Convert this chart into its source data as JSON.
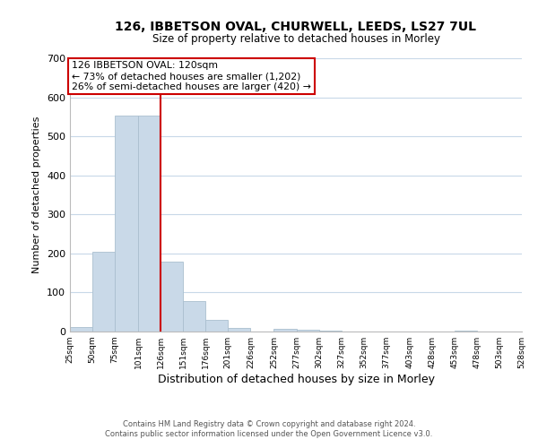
{
  "title1": "126, IBBETSON OVAL, CHURWELL, LEEDS, LS27 7UL",
  "title2": "Size of property relative to detached houses in Morley",
  "xlabel": "Distribution of detached houses by size in Morley",
  "ylabel": "Number of detached properties",
  "bar_edges": [
    25,
    50,
    75,
    101,
    126,
    151,
    176,
    201,
    226,
    252,
    277,
    302,
    327,
    352,
    377,
    403,
    428,
    453,
    478,
    503,
    528
  ],
  "bar_heights": [
    12,
    205,
    553,
    553,
    178,
    77,
    30,
    10,
    0,
    8,
    5,
    3,
    0,
    0,
    0,
    0,
    0,
    3,
    0,
    0
  ],
  "bar_color": "#c9d9e8",
  "bar_edgecolor": "#aabfcf",
  "vline_x": 126,
  "vline_color": "#cc0000",
  "annotation_title": "126 IBBETSON OVAL: 120sqm",
  "annotation_line1": "← 73% of detached houses are smaller (1,202)",
  "annotation_line2": "26% of semi-detached houses are larger (420) →",
  "annotation_box_edgecolor": "#cc0000",
  "ylim": [
    0,
    700
  ],
  "yticks": [
    0,
    100,
    200,
    300,
    400,
    500,
    600,
    700
  ],
  "tick_labels": [
    "25sqm",
    "50sqm",
    "75sqm",
    "101sqm",
    "126sqm",
    "151sqm",
    "176sqm",
    "201sqm",
    "226sqm",
    "252sqm",
    "277sqm",
    "302sqm",
    "327sqm",
    "352sqm",
    "377sqm",
    "403sqm",
    "428sqm",
    "453sqm",
    "478sqm",
    "503sqm",
    "528sqm"
  ],
  "footer1": "Contains HM Land Registry data © Crown copyright and database right 2024.",
  "footer2": "Contains public sector information licensed under the Open Government Licence v3.0.",
  "bg_color": "#ffffff",
  "grid_color": "#c8d8e8"
}
